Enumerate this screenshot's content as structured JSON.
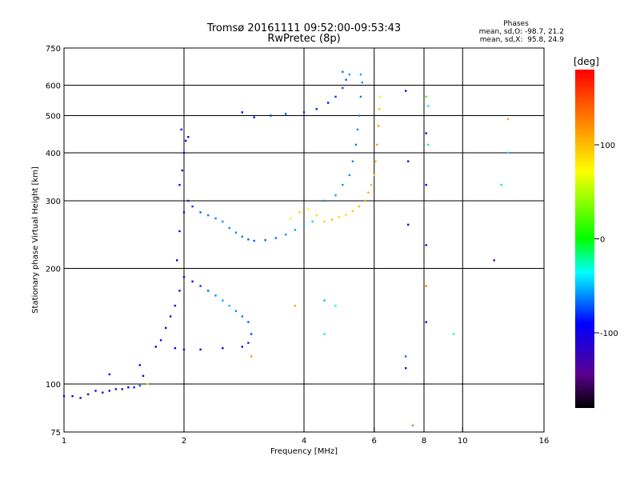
{
  "chart_data": {
    "type": "scatter",
    "title": "Tromsø 20161111 09:52:00-09:53:43",
    "subtitle": "RwPretec (8p)",
    "stats": {
      "heading": "Phases",
      "line_o": "mean, sd,O: -98.7, 21.2",
      "line_x": "mean, sd,X:  95.8, 24.9"
    },
    "xlabel": "Frequency [MHz]",
    "ylabel": "Stationary phase Virtual Height [km]",
    "x_scale": "log",
    "y_scale": "log",
    "xlim": [
      1,
      16
    ],
    "ylim": [
      75,
      750
    ],
    "x_ticks": [
      {
        "value": 1,
        "label": "1"
      },
      {
        "value": 2,
        "label": "2"
      },
      {
        "value": 4,
        "label": "4"
      },
      {
        "value": 6,
        "label": "6"
      },
      {
        "value": 8,
        "label": "8"
      },
      {
        "value": 10,
        "label": "10"
      },
      {
        "value": 16,
        "label": "16"
      }
    ],
    "y_ticks": [
      {
        "value": 75,
        "label": "75"
      },
      {
        "value": 100,
        "label": "100"
      },
      {
        "value": 200,
        "label": "200"
      },
      {
        "value": 300,
        "label": "300"
      },
      {
        "value": 400,
        "label": "400"
      },
      {
        "value": 500,
        "label": "500"
      },
      {
        "value": 600,
        "label": "600"
      },
      {
        "value": 750,
        "label": "750"
      }
    ],
    "grid_x": [
      2,
      4,
      6,
      8,
      10
    ],
    "grid_y": [
      100,
      200,
      300,
      400,
      500,
      600
    ],
    "colorbar": {
      "label": "[deg]",
      "range": [
        -180,
        180
      ],
      "ticks": [
        {
          "value": 100,
          "label": "100"
        },
        {
          "value": 0,
          "label": "0"
        },
        {
          "value": -100,
          "label": "-100"
        }
      ]
    },
    "series": [
      {
        "points": [
          [
            1.0,
            93,
            -110
          ],
          [
            1.05,
            93,
            -108
          ],
          [
            1.1,
            92,
            -112
          ],
          [
            1.15,
            94,
            -105
          ],
          [
            1.2,
            96,
            -100
          ],
          [
            1.25,
            95,
            -110
          ],
          [
            1.3,
            96,
            -104
          ],
          [
            1.35,
            97,
            -100
          ],
          [
            1.4,
            97,
            -95
          ],
          [
            1.45,
            98,
            -90
          ],
          [
            1.5,
            98,
            -85
          ],
          [
            1.55,
            99,
            -70
          ],
          [
            1.62,
            100,
            80
          ]
        ]
      },
      {
        "points": [
          [
            1.3,
            106,
            -95
          ],
          [
            1.55,
            112,
            -90
          ],
          [
            1.58,
            105,
            -95
          ]
        ]
      },
      {
        "points": [
          [
            1.7,
            125,
            -95
          ],
          [
            1.75,
            130,
            -100
          ],
          [
            1.8,
            140,
            -90
          ],
          [
            1.85,
            150,
            -100
          ],
          [
            1.9,
            160,
            -105
          ],
          [
            1.95,
            175,
            -95
          ],
          [
            2.0,
            190,
            -100
          ],
          [
            2.1,
            185,
            -90
          ],
          [
            2.2,
            180,
            -80
          ],
          [
            2.3,
            175,
            -70
          ],
          [
            2.4,
            170,
            -60
          ],
          [
            2.5,
            165,
            -55
          ],
          [
            2.6,
            160,
            -50
          ],
          [
            2.7,
            155,
            -60
          ],
          [
            2.8,
            150,
            -65
          ],
          [
            2.9,
            145,
            -70
          ],
          [
            2.95,
            135,
            -75
          ],
          [
            2.9,
            128,
            -85
          ],
          [
            2.8,
            125,
            -90
          ],
          [
            2.5,
            124,
            -95
          ],
          [
            2.2,
            123,
            -100
          ],
          [
            2.0,
            123,
            -105
          ],
          [
            1.9,
            124,
            -95
          ]
        ]
      },
      {
        "points": [
          [
            1.92,
            210,
            -100
          ],
          [
            1.95,
            250,
            -95
          ],
          [
            2.0,
            280,
            -90
          ],
          [
            2.05,
            300,
            -85
          ],
          [
            2.1,
            290,
            -80
          ],
          [
            2.2,
            280,
            -70
          ],
          [
            2.3,
            275,
            -65
          ],
          [
            2.4,
            270,
            -60
          ],
          [
            2.5,
            265,
            -58
          ],
          [
            2.6,
            255,
            -60
          ],
          [
            2.7,
            248,
            -62
          ],
          [
            2.8,
            242,
            -65
          ],
          [
            2.9,
            238,
            -70
          ],
          [
            3.0,
            236,
            -72
          ],
          [
            3.2,
            237,
            -70
          ],
          [
            3.4,
            240,
            -65
          ],
          [
            3.6,
            245,
            -60
          ],
          [
            3.8,
            252,
            -55
          ],
          [
            4.0,
            260,
            -50
          ],
          [
            4.2,
            265,
            -45
          ]
        ]
      },
      {
        "points": [
          [
            1.95,
            330,
            -95
          ],
          [
            1.98,
            360,
            -100
          ],
          [
            2.0,
            400,
            -95
          ],
          [
            2.02,
            430,
            -90
          ],
          [
            2.05,
            440,
            -100
          ],
          [
            1.97,
            460,
            -95
          ]
        ]
      },
      {
        "points": [
          [
            3.7,
            270,
            80
          ],
          [
            3.9,
            280,
            90
          ],
          [
            4.1,
            285,
            70
          ],
          [
            4.3,
            275,
            85
          ],
          [
            4.5,
            265,
            95
          ],
          [
            4.7,
            268,
            100
          ],
          [
            4.9,
            272,
            90
          ],
          [
            5.1,
            276,
            85
          ],
          [
            5.3,
            282,
            95
          ],
          [
            5.5,
            290,
            100
          ],
          [
            5.7,
            300,
            110
          ],
          [
            5.8,
            315,
            105
          ],
          [
            5.9,
            330,
            100
          ],
          [
            6.0,
            350,
            95
          ],
          [
            6.05,
            380,
            105
          ],
          [
            6.1,
            420,
            110
          ],
          [
            6.15,
            470,
            120
          ],
          [
            6.18,
            520,
            100
          ],
          [
            6.2,
            560,
            80
          ]
        ]
      },
      {
        "points": [
          [
            4.5,
            300,
            -60
          ],
          [
            4.8,
            310,
            -55
          ],
          [
            5.0,
            330,
            -58
          ],
          [
            5.2,
            350,
            -60
          ],
          [
            5.3,
            380,
            -62
          ],
          [
            5.4,
            420,
            -65
          ],
          [
            5.45,
            460,
            -60
          ],
          [
            5.5,
            500,
            -62
          ],
          [
            5.55,
            560,
            -65
          ],
          [
            5.6,
            610,
            -60
          ],
          [
            5.55,
            640,
            -55
          ]
        ]
      },
      {
        "points": [
          [
            2.8,
            510,
            -90
          ],
          [
            3.0,
            495,
            -85
          ],
          [
            3.3,
            500,
            -80
          ],
          [
            3.6,
            505,
            -75
          ],
          [
            4.0,
            510,
            -80
          ],
          [
            4.3,
            520,
            -85
          ],
          [
            4.6,
            540,
            -90
          ],
          [
            4.8,
            560,
            -80
          ],
          [
            5.0,
            590,
            -75
          ],
          [
            5.1,
            620,
            -70
          ],
          [
            5.2,
            640,
            -60
          ],
          [
            5.0,
            650,
            -65
          ]
        ]
      },
      {
        "points": [
          [
            4.5,
            165,
            -50
          ],
          [
            4.5,
            135,
            -40
          ],
          [
            4.8,
            160,
            -30
          ],
          [
            3.8,
            160,
            110
          ],
          [
            2.95,
            118,
            120
          ]
        ]
      },
      {
        "points": [
          [
            7.2,
            580,
            -90
          ],
          [
            7.3,
            380,
            -100
          ],
          [
            7.3,
            260,
            -95
          ],
          [
            7.2,
            118,
            -70
          ],
          [
            7.2,
            110,
            -110
          ],
          [
            7.5,
            78,
            130
          ],
          [
            8.1,
            560,
            20
          ],
          [
            8.1,
            450,
            -100
          ],
          [
            8.1,
            330,
            -90
          ],
          [
            8.1,
            230,
            -120
          ],
          [
            8.1,
            180,
            130
          ],
          [
            8.1,
            145,
            -95
          ],
          [
            8.2,
            420,
            -20
          ],
          [
            8.2,
            530,
            -40
          ],
          [
            9.5,
            135,
            -30
          ],
          [
            12.0,
            210,
            -140
          ],
          [
            12.5,
            330,
            -20
          ],
          [
            13.0,
            400,
            -40
          ],
          [
            13.0,
            490,
            110
          ]
        ]
      }
    ]
  }
}
